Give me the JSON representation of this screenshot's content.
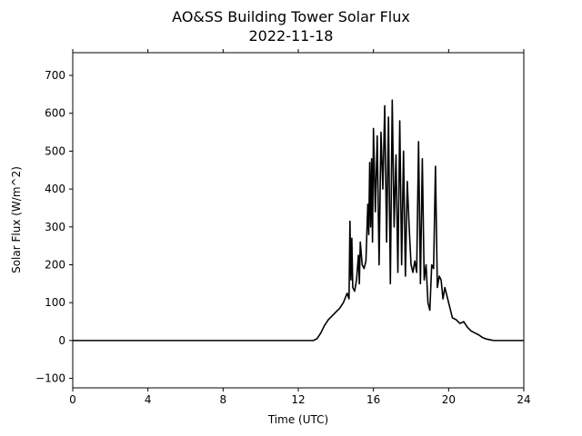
{
  "chart_data": {
    "type": "line",
    "title": "AO&SS Building Tower Solar Flux",
    "subtitle": "2022-11-18",
    "xlabel": "Time (UTC)",
    "ylabel": "Solar Flux (W/m^2)",
    "xlim": [
      0,
      24
    ],
    "ylim": [
      -125,
      760
    ],
    "xticks": [
      0,
      4,
      8,
      12,
      16,
      20,
      24
    ],
    "yticks": [
      -100,
      0,
      100,
      200,
      300,
      400,
      500,
      600,
      700
    ],
    "grid": false,
    "line_color": "#000000",
    "series": [
      {
        "x": [
          0,
          12.8,
          13.0,
          13.2,
          13.4,
          13.6,
          13.8,
          14.0,
          14.2,
          14.4,
          14.6,
          14.7,
          14.75,
          14.8,
          14.85,
          14.9,
          15.0,
          15.1,
          15.2,
          15.25,
          15.3,
          15.4,
          15.5,
          15.6,
          15.7,
          15.75,
          15.8,
          15.85,
          15.9,
          15.95,
          16.0,
          16.1,
          16.2,
          16.3,
          16.4,
          16.5,
          16.6,
          16.7,
          16.8,
          16.9,
          17.0,
          17.1,
          17.2,
          17.3,
          17.4,
          17.5,
          17.6,
          17.7,
          17.8,
          17.9,
          18.0,
          18.1,
          18.2,
          18.3,
          18.4,
          18.5,
          18.6,
          18.7,
          18.8,
          18.9,
          19.0,
          19.1,
          19.2,
          19.3,
          19.4,
          19.5,
          19.6,
          19.7,
          19.8,
          19.9,
          20.0,
          20.2,
          20.4,
          20.6,
          20.8,
          21.0,
          21.2,
          21.4,
          21.6,
          21.8,
          22.0,
          22.2,
          22.4,
          22.6,
          24
        ],
        "y": [
          0,
          0,
          5,
          20,
          40,
          55,
          65,
          75,
          85,
          100,
          125,
          110,
          315,
          160,
          270,
          140,
          130,
          160,
          225,
          150,
          260,
          200,
          190,
          210,
          360,
          280,
          470,
          300,
          480,
          260,
          560,
          340,
          540,
          200,
          550,
          400,
          620,
          260,
          590,
          150,
          635,
          300,
          490,
          180,
          580,
          200,
          500,
          170,
          420,
          300,
          200,
          180,
          210,
          180,
          525,
          150,
          480,
          160,
          200,
          100,
          80,
          200,
          190,
          460,
          140,
          170,
          160,
          110,
          140,
          120,
          100,
          60,
          55,
          45,
          50,
          35,
          25,
          20,
          15,
          8,
          4,
          2,
          0,
          0,
          0
        ]
      }
    ]
  }
}
